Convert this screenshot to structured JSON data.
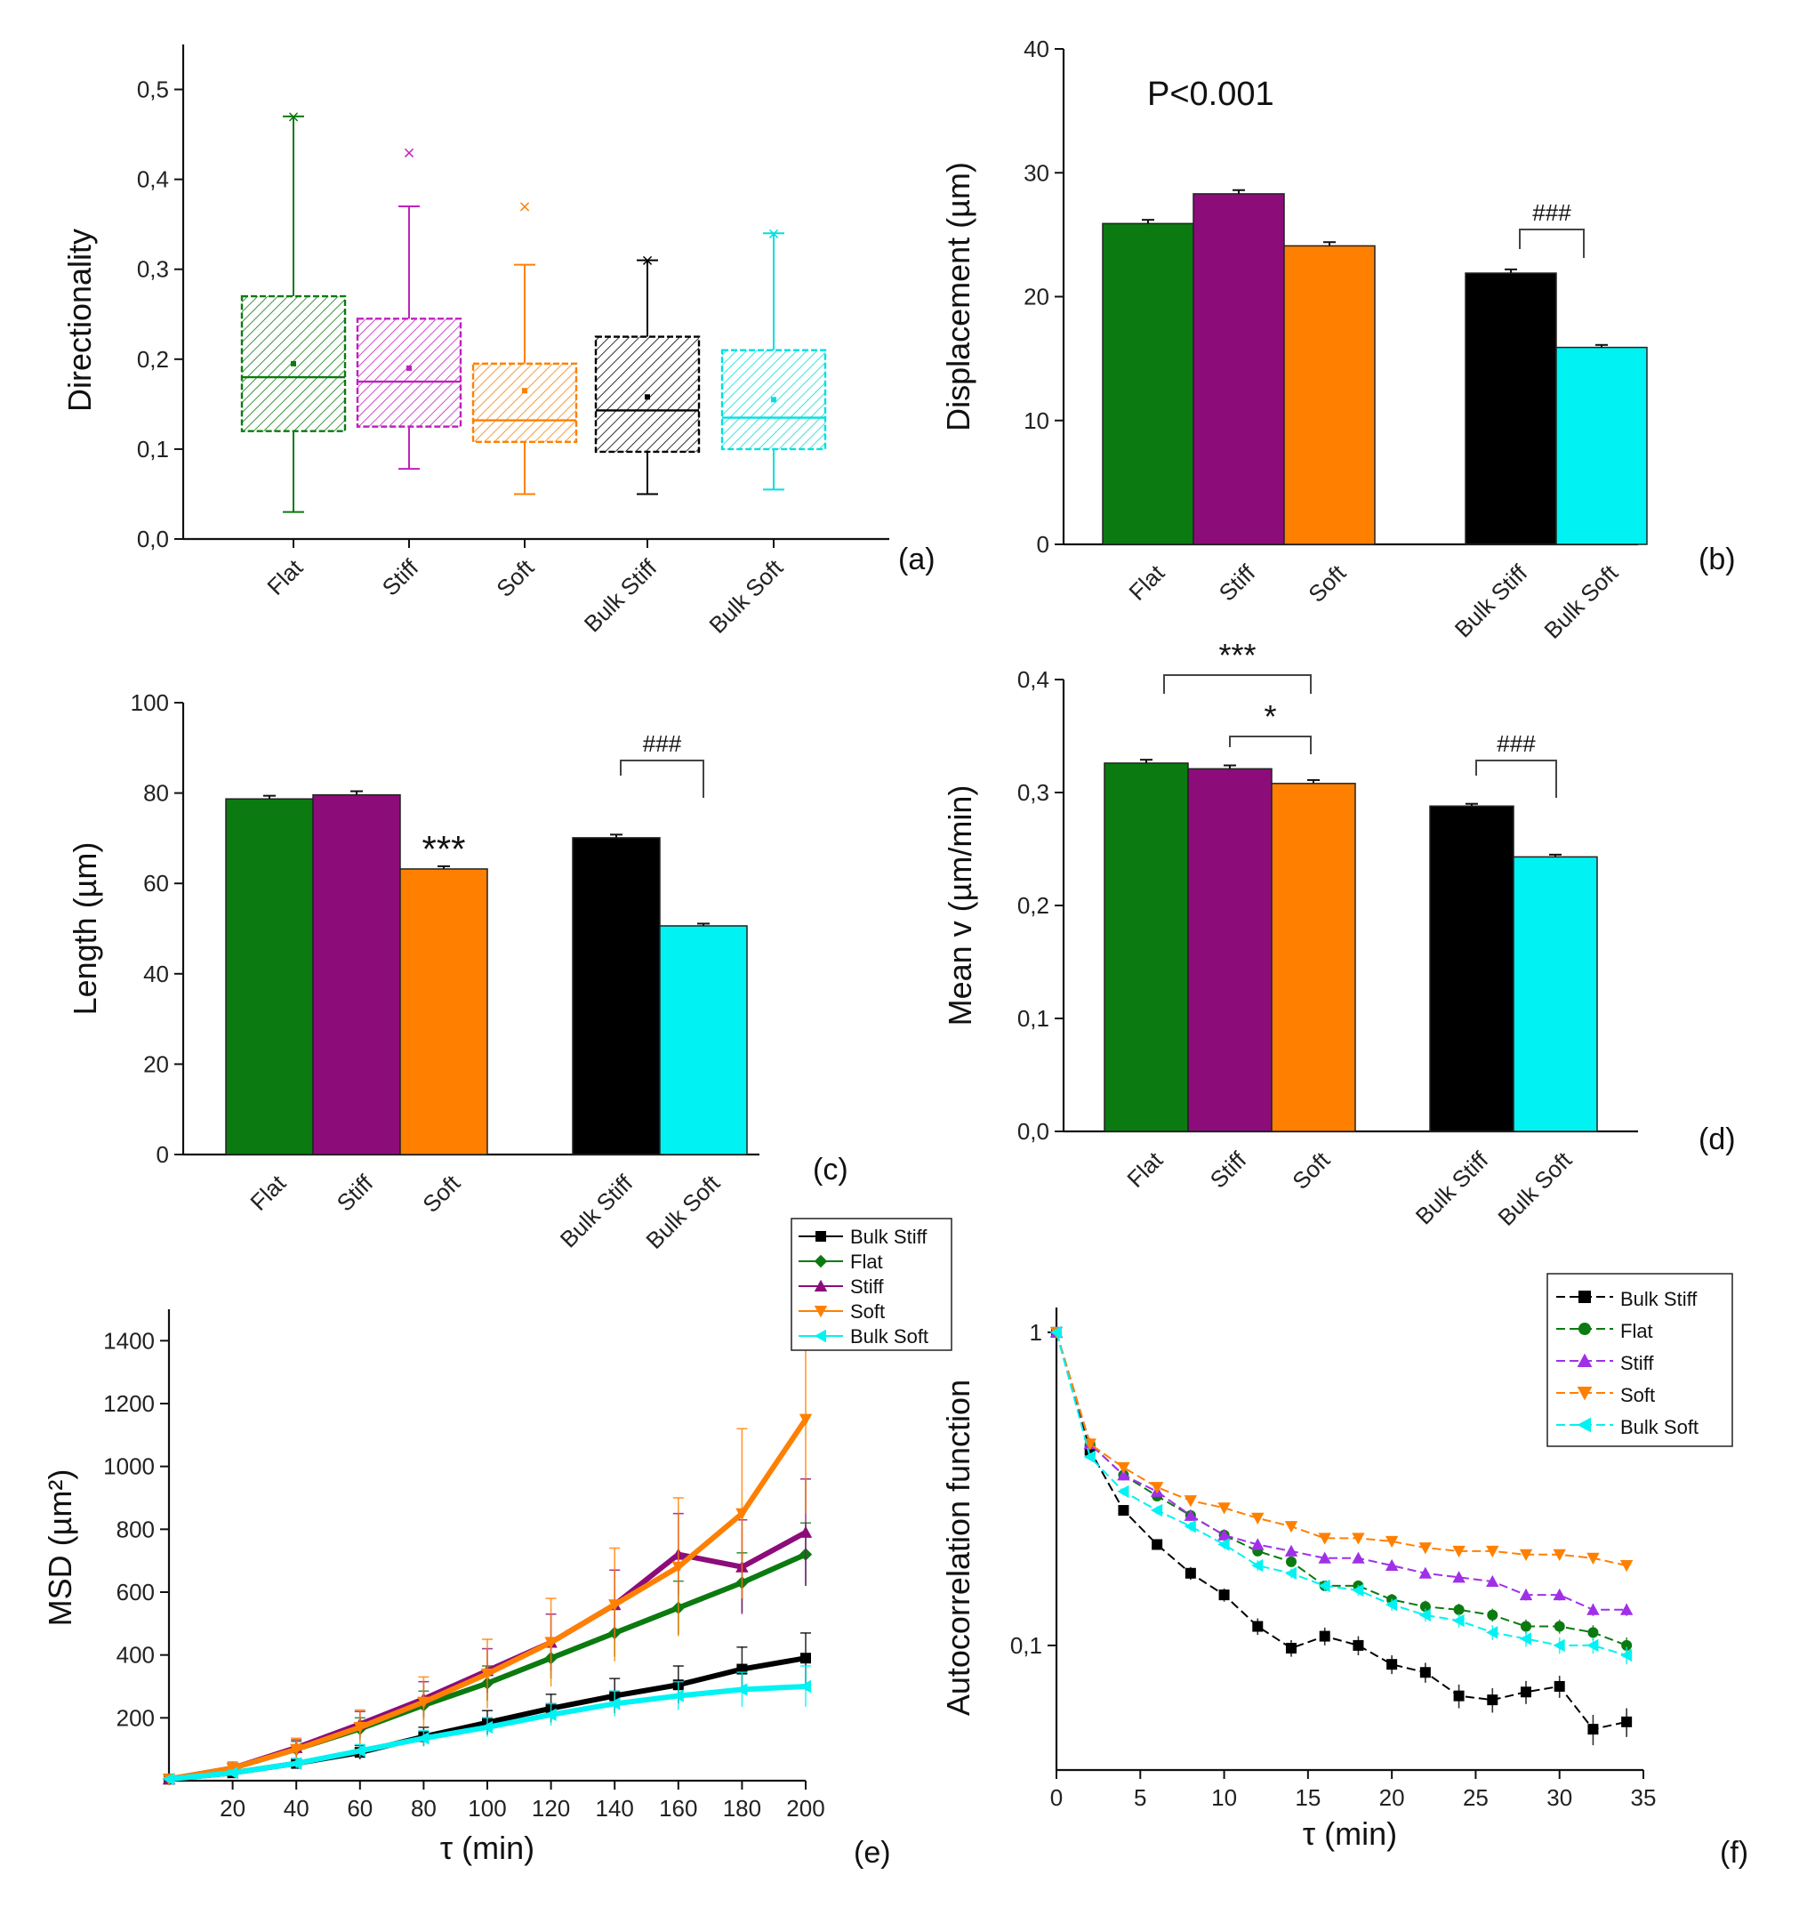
{
  "colors": {
    "flat": "#0b7a10",
    "stiff": "#8c0c7a",
    "soft": "#ff8000",
    "bulk_stiff": "#000000",
    "bulk_soft": "#00f2f2",
    "stiff_light": "#a030e8"
  },
  "chart_data": [
    {
      "id": "a",
      "type": "box",
      "panel_label": "(a)",
      "ylabel": "Directionality",
      "ylim": [
        0,
        0.55
      ],
      "yticks": [
        0,
        0.1,
        0.2,
        0.3,
        0.4,
        0.5
      ],
      "ytick_labels": [
        "0,0",
        "0,1",
        "0,2",
        "0,3",
        "0,4",
        "0,5"
      ],
      "categories": [
        "Flat",
        "Stiff",
        "Soft",
        "Bulk Stiff",
        "Bulk Soft"
      ],
      "boxes": [
        {
          "category": "Flat",
          "whisker_low": 0.03,
          "q1": 0.12,
          "median": 0.18,
          "q3": 0.27,
          "whisker_high": 0.47,
          "mean": 0.195,
          "max": 0.47
        },
        {
          "category": "Stiff",
          "whisker_low": 0.078,
          "q1": 0.125,
          "median": 0.175,
          "q3": 0.245,
          "whisker_high": 0.37,
          "mean": 0.19,
          "max": 0.43
        },
        {
          "category": "Soft",
          "whisker_low": 0.05,
          "q1": 0.108,
          "median": 0.132,
          "q3": 0.195,
          "whisker_high": 0.305,
          "mean": 0.165,
          "max": 0.37
        },
        {
          "category": "Bulk Stiff",
          "whisker_low": 0.05,
          "q1": 0.097,
          "median": 0.143,
          "q3": 0.225,
          "whisker_high": 0.31,
          "mean": 0.158,
          "max": 0.31
        },
        {
          "category": "Bulk Soft",
          "whisker_low": 0.055,
          "q1": 0.1,
          "median": 0.135,
          "q3": 0.21,
          "whisker_high": 0.34,
          "mean": 0.155,
          "max": 0.34
        }
      ]
    },
    {
      "id": "b",
      "type": "bar",
      "panel_label": "(b)",
      "ylabel": "Displacement (µm)",
      "ylim": [
        0,
        40
      ],
      "yticks": [
        0,
        10,
        20,
        30,
        40
      ],
      "ytick_labels": [
        "0",
        "10",
        "20",
        "30",
        "40"
      ],
      "categories": [
        "Flat",
        "Stiff",
        "Soft",
        "Bulk Stiff",
        "Bulk Soft"
      ],
      "values": [
        25.9,
        28.3,
        24.1,
        21.9,
        15.9
      ],
      "errors": [
        0.3,
        0.3,
        0.3,
        0.3,
        0.2
      ],
      "annotations": {
        "pvalue": "P<0.001",
        "bracket_bulk": "###"
      }
    },
    {
      "id": "c",
      "type": "bar",
      "panel_label": "(c)",
      "ylabel": "Length (µm)",
      "ylim": [
        0,
        100
      ],
      "yticks": [
        0,
        20,
        40,
        60,
        80,
        100
      ],
      "ytick_labels": [
        "0",
        "20",
        "40",
        "60",
        "80",
        "100"
      ],
      "categories": [
        "Flat",
        "Stiff",
        "Soft",
        "Bulk Stiff",
        "Bulk Soft"
      ],
      "values": [
        78.7,
        79.6,
        63.2,
        70.1,
        50.6
      ],
      "errors": [
        0.7,
        0.8,
        0.6,
        0.7,
        0.5
      ],
      "annotations": {
        "soft_sig": "***",
        "bracket_bulk": "###"
      }
    },
    {
      "id": "d",
      "type": "bar",
      "panel_label": "(d)",
      "ylabel": "Mean v (µm/min)",
      "ylim": [
        0,
        0.4
      ],
      "yticks": [
        0,
        0.1,
        0.2,
        0.3,
        0.4
      ],
      "ytick_labels": [
        "0,0",
        "0,1",
        "0,2",
        "0,3",
        "0,4"
      ],
      "categories": [
        "Flat",
        "Stiff",
        "Soft",
        "Bulk Stiff",
        "Bulk Soft"
      ],
      "values": [
        0.326,
        0.321,
        0.308,
        0.288,
        0.243
      ],
      "errors": [
        0.003,
        0.003,
        0.003,
        0.002,
        0.002
      ],
      "annotations": {
        "bracket_flat_soft": "***",
        "bracket_stiff_soft": "*",
        "bracket_bulk": "###"
      }
    },
    {
      "id": "e",
      "type": "line",
      "panel_label": "(e)",
      "xlabel": "τ (min)",
      "ylabel": "MSD (µm²)",
      "xlim": [
        0,
        200
      ],
      "ylim": [
        0,
        1500
      ],
      "xticks": [
        20,
        40,
        60,
        80,
        100,
        120,
        140,
        160,
        180,
        200
      ],
      "xtick_labels": [
        "20",
        "40",
        "60",
        "80",
        "100",
        "120",
        "140",
        "160",
        "180",
        "200"
      ],
      "yticks": [
        200,
        400,
        600,
        800,
        1000,
        1200,
        1400
      ],
      "ytick_labels": [
        "200",
        "400",
        "600",
        "800",
        "1000",
        "1200",
        "1400"
      ],
      "legend_position": "top-right",
      "series": [
        {
          "name": "Bulk Stiff",
          "key": "bulk_stiff",
          "marker": "square",
          "x": [
            0,
            20,
            40,
            60,
            80,
            100,
            120,
            140,
            160,
            180,
            200
          ],
          "y": [
            5,
            25,
            55,
            90,
            140,
            185,
            230,
            270,
            305,
            355,
            390
          ],
          "err": [
            4,
            8,
            15,
            22,
            30,
            38,
            45,
            55,
            60,
            70,
            80
          ]
        },
        {
          "name": "Flat",
          "key": "flat",
          "marker": "diamond",
          "x": [
            0,
            20,
            40,
            60,
            80,
            100,
            120,
            140,
            160,
            180,
            200
          ],
          "y": [
            5,
            40,
            100,
            165,
            240,
            310,
            390,
            470,
            550,
            630,
            720
          ],
          "err": [
            5,
            15,
            25,
            35,
            45,
            55,
            65,
            75,
            85,
            95,
            100
          ]
        },
        {
          "name": "Stiff",
          "key": "stiff",
          "marker": "triangle-up",
          "x": [
            0,
            20,
            40,
            60,
            80,
            100,
            120,
            140,
            160,
            180,
            200
          ],
          "y": [
            5,
            40,
            105,
            180,
            260,
            350,
            440,
            560,
            720,
            680,
            790
          ],
          "err": [
            5,
            15,
            25,
            40,
            55,
            70,
            90,
            110,
            130,
            150,
            170
          ]
        },
        {
          "name": "Soft",
          "key": "soft",
          "marker": "triangle-down",
          "x": [
            0,
            20,
            40,
            60,
            80,
            100,
            120,
            140,
            160,
            180,
            200
          ],
          "y": [
            5,
            40,
            100,
            170,
            250,
            340,
            440,
            560,
            680,
            850,
            1150
          ],
          "err": [
            5,
            20,
            35,
            55,
            80,
            110,
            140,
            180,
            220,
            270,
            300
          ]
        },
        {
          "name": "Bulk Soft",
          "key": "bulk_soft",
          "marker": "triangle-left",
          "x": [
            0,
            20,
            40,
            60,
            80,
            100,
            120,
            140,
            160,
            180,
            200
          ],
          "y": [
            5,
            25,
            55,
            95,
            135,
            170,
            210,
            245,
            270,
            290,
            300
          ],
          "err": [
            4,
            8,
            15,
            20,
            25,
            30,
            35,
            40,
            45,
            55,
            65
          ]
        }
      ]
    },
    {
      "id": "f",
      "type": "line",
      "panel_label": "(f)",
      "xlabel": "τ (min)",
      "ylabel": "Autocorrelation function",
      "yscale": "log",
      "xlim": [
        0,
        35
      ],
      "ylim": [
        0.04,
        1.2
      ],
      "xticks": [
        0,
        5,
        10,
        15,
        20,
        25,
        30,
        35
      ],
      "xtick_labels": [
        "0",
        "5",
        "10",
        "15",
        "20",
        "25",
        "30",
        "35"
      ],
      "yticks": [
        0.1,
        1
      ],
      "ytick_labels": [
        "0,1",
        "1"
      ],
      "legend_position": "top-right",
      "series": [
        {
          "name": "Bulk Stiff",
          "key": "bulk_stiff",
          "marker": "square",
          "x": [
            0,
            2,
            4,
            6,
            8,
            10,
            12,
            14,
            16,
            18,
            20,
            22,
            24,
            26,
            28,
            30,
            32,
            34
          ],
          "y": [
            1.0,
            0.42,
            0.27,
            0.21,
            0.17,
            0.145,
            0.115,
            0.098,
            0.107,
            0.1,
            0.087,
            0.082,
            0.069,
            0.067,
            0.071,
            0.074,
            0.054,
            0.057
          ],
          "err": [
            0,
            0.01,
            0.008,
            0.008,
            0.008,
            0.007,
            0.007,
            0.006,
            0.007,
            0.007,
            0.006,
            0.006,
            0.006,
            0.006,
            0.006,
            0.006,
            0.006,
            0.006
          ]
        },
        {
          "name": "Flat",
          "key": "flat",
          "marker": "circle",
          "x": [
            0,
            2,
            4,
            6,
            8,
            10,
            12,
            14,
            16,
            18,
            20,
            22,
            24,
            26,
            28,
            30,
            32,
            34
          ],
          "y": [
            1.0,
            0.44,
            0.35,
            0.3,
            0.26,
            0.225,
            0.2,
            0.185,
            0.155,
            0.155,
            0.14,
            0.133,
            0.13,
            0.125,
            0.115,
            0.115,
            0.11,
            0.1
          ],
          "err": [
            0,
            0.01,
            0.008,
            0.008,
            0.008,
            0.007,
            0.007,
            0.006,
            0.006,
            0.006,
            0.006,
            0.006,
            0.006,
            0.006,
            0.006,
            0.006,
            0.006,
            0.006
          ]
        },
        {
          "name": "Stiff",
          "key": "stiff_light",
          "marker": "triangle-up",
          "x": [
            0,
            2,
            4,
            6,
            8,
            10,
            12,
            14,
            16,
            18,
            20,
            22,
            24,
            26,
            28,
            30,
            32,
            34
          ],
          "y": [
            1.0,
            0.44,
            0.35,
            0.31,
            0.26,
            0.225,
            0.21,
            0.2,
            0.19,
            0.19,
            0.18,
            0.17,
            0.165,
            0.16,
            0.145,
            0.145,
            0.13,
            0.13
          ],
          "err": [
            0,
            0.01,
            0.008,
            0.008,
            0.008,
            0.007,
            0.007,
            0.006,
            0.006,
            0.006,
            0.006,
            0.006,
            0.006,
            0.006,
            0.006,
            0.006,
            0.006,
            0.006
          ]
        },
        {
          "name": "Soft",
          "key": "soft",
          "marker": "triangle-down",
          "x": [
            0,
            2,
            4,
            6,
            8,
            10,
            12,
            14,
            16,
            18,
            20,
            22,
            24,
            26,
            28,
            30,
            32,
            34
          ],
          "y": [
            1.0,
            0.44,
            0.37,
            0.32,
            0.29,
            0.275,
            0.255,
            0.24,
            0.22,
            0.22,
            0.215,
            0.205,
            0.2,
            0.2,
            0.195,
            0.195,
            0.19,
            0.18
          ],
          "err": [
            0,
            0.01,
            0.008,
            0.008,
            0.008,
            0.007,
            0.007,
            0.006,
            0.006,
            0.006,
            0.006,
            0.006,
            0.006,
            0.006,
            0.006,
            0.006,
            0.006,
            0.006
          ]
        },
        {
          "name": "Bulk Soft",
          "key": "bulk_soft",
          "marker": "triangle-left",
          "x": [
            0,
            2,
            4,
            6,
            8,
            10,
            12,
            14,
            16,
            18,
            20,
            22,
            24,
            26,
            28,
            30,
            32,
            34
          ],
          "y": [
            1.0,
            0.4,
            0.31,
            0.27,
            0.24,
            0.21,
            0.18,
            0.17,
            0.155,
            0.15,
            0.135,
            0.125,
            0.12,
            0.11,
            0.105,
            0.1,
            0.1,
            0.093
          ],
          "err": [
            0,
            0.01,
            0.008,
            0.008,
            0.008,
            0.007,
            0.007,
            0.006,
            0.006,
            0.006,
            0.006,
            0.006,
            0.006,
            0.006,
            0.006,
            0.006,
            0.006,
            0.006
          ]
        }
      ]
    }
  ]
}
